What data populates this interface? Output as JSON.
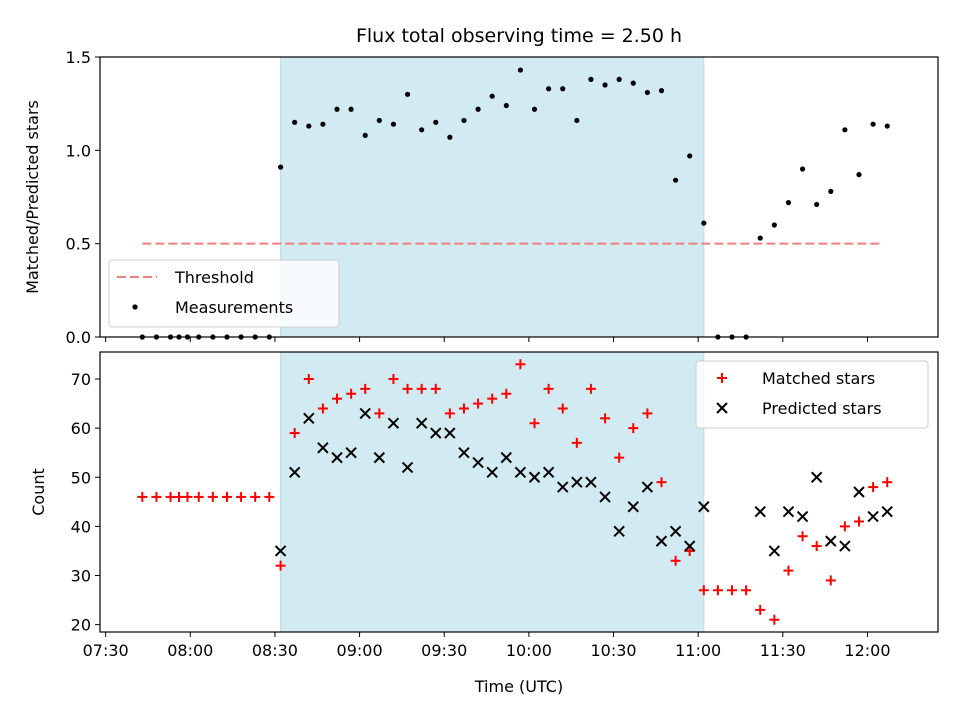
{
  "chart_data": [
    {
      "type": "scatter",
      "title": "Flux total observing time = 2.50 h",
      "xlabel": "",
      "ylabel": "Matched/Predicted stars",
      "ylim": [
        0,
        1.5
      ],
      "yticks": [
        0.0,
        0.5,
        1.0,
        1.5
      ],
      "ytick_labels": [
        "0.0",
        "0.5",
        "1.0",
        "1.5"
      ],
      "x_axis": "time (UTC), HH:MM",
      "xlim": [
        "07:28",
        "12:25"
      ],
      "xticks_minor_only": [
        "07:30",
        "08:00",
        "08:30",
        "09:00",
        "09:30",
        "10:00",
        "10:30",
        "11:00",
        "11:30",
        "12:00"
      ],
      "shaded_span": {
        "start": "08:32",
        "end": "11:02",
        "color": "#d2eaf1"
      },
      "threshold": {
        "value": 0.5,
        "x_start": "07:43",
        "x_end": "12:05",
        "color": "#f08080"
      },
      "legend": {
        "placement": "lower-left",
        "entries": [
          {
            "label": "Threshold",
            "marker": "dashed-line",
            "color": "#f08080"
          },
          {
            "label": "Measurements",
            "marker": "dot",
            "color": "#000000"
          }
        ]
      },
      "series": [
        {
          "name": "Measurements",
          "color": "#000000",
          "points": [
            [
              "07:43",
              0.0
            ],
            [
              "07:48",
              0.0
            ],
            [
              "07:53",
              0.0
            ],
            [
              "07:56",
              0.0
            ],
            [
              "07:59",
              0.0
            ],
            [
              "08:03",
              0.0
            ],
            [
              "08:08",
              0.0
            ],
            [
              "08:13",
              0.0
            ],
            [
              "08:18",
              0.0
            ],
            [
              "08:23",
              0.0
            ],
            [
              "08:28",
              0.0
            ],
            [
              "08:32",
              0.91
            ],
            [
              "08:37",
              1.15
            ],
            [
              "08:42",
              1.13
            ],
            [
              "08:47",
              1.14
            ],
            [
              "08:52",
              1.22
            ],
            [
              "08:57",
              1.22
            ],
            [
              "09:02",
              1.08
            ],
            [
              "09:07",
              1.16
            ],
            [
              "09:12",
              1.14
            ],
            [
              "09:17",
              1.3
            ],
            [
              "09:22",
              1.11
            ],
            [
              "09:27",
              1.15
            ],
            [
              "09:32",
              1.07
            ],
            [
              "09:37",
              1.16
            ],
            [
              "09:42",
              1.22
            ],
            [
              "09:47",
              1.29
            ],
            [
              "09:52",
              1.24
            ],
            [
              "09:57",
              1.43
            ],
            [
              "10:02",
              1.22
            ],
            [
              "10:07",
              1.33
            ],
            [
              "10:12",
              1.33
            ],
            [
              "10:17",
              1.16
            ],
            [
              "10:22",
              1.38
            ],
            [
              "10:27",
              1.35
            ],
            [
              "10:32",
              1.38
            ],
            [
              "10:37",
              1.36
            ],
            [
              "10:42",
              1.31
            ],
            [
              "10:47",
              1.32
            ],
            [
              "10:52",
              0.84
            ],
            [
              "10:57",
              0.97
            ],
            [
              "11:02",
              0.61
            ],
            [
              "11:07",
              0.0
            ],
            [
              "11:12",
              0.0
            ],
            [
              "11:17",
              0.0
            ],
            [
              "11:22",
              0.53
            ],
            [
              "11:27",
              0.6
            ],
            [
              "11:32",
              0.72
            ],
            [
              "11:37",
              0.9
            ],
            [
              "11:42",
              0.71
            ],
            [
              "11:47",
              0.78
            ],
            [
              "11:52",
              1.11
            ],
            [
              "11:57",
              0.87
            ],
            [
              "12:02",
              1.14
            ],
            [
              "12:07",
              1.13
            ]
          ]
        }
      ]
    },
    {
      "type": "scatter",
      "title": "",
      "xlabel": "Time (UTC)",
      "ylabel": "Count",
      "ylim": [
        18.5,
        75.5
      ],
      "yticks": [
        20,
        30,
        40,
        50,
        60,
        70
      ],
      "ytick_labels": [
        "20",
        "30",
        "40",
        "50",
        "60",
        "70"
      ],
      "xlim": [
        "07:28",
        "12:25"
      ],
      "xticks": [
        "07:30",
        "08:00",
        "08:30",
        "09:00",
        "09:30",
        "10:00",
        "10:30",
        "11:00",
        "11:30",
        "12:00"
      ],
      "xtick_labels": [
        "07:30",
        "08:00",
        "08:30",
        "09:00",
        "09:30",
        "10:00",
        "10:30",
        "11:00",
        "11:30",
        "12:00"
      ],
      "shaded_span": {
        "start": "08:32",
        "end": "11:02",
        "color": "#d2eaf1"
      },
      "legend": {
        "placement": "top-right",
        "entries": [
          {
            "label": "Matched stars",
            "marker": "plus",
            "color": "#ff0000"
          },
          {
            "label": "Predicted stars",
            "marker": "x",
            "color": "#000000"
          }
        ]
      },
      "series": [
        {
          "name": "Matched stars",
          "color": "#ff0000",
          "points": [
            [
              "07:43",
              46
            ],
            [
              "07:48",
              46
            ],
            [
              "07:53",
              46
            ],
            [
              "07:56",
              46
            ],
            [
              "07:59",
              46
            ],
            [
              "08:03",
              46
            ],
            [
              "08:08",
              46
            ],
            [
              "08:13",
              46
            ],
            [
              "08:18",
              46
            ],
            [
              "08:23",
              46
            ],
            [
              "08:28",
              46
            ],
            [
              "08:32",
              32
            ],
            [
              "08:37",
              59
            ],
            [
              "08:42",
              70
            ],
            [
              "08:47",
              64
            ],
            [
              "08:52",
              66
            ],
            [
              "08:57",
              67
            ],
            [
              "09:02",
              68
            ],
            [
              "09:07",
              63
            ],
            [
              "09:12",
              70
            ],
            [
              "09:17",
              68
            ],
            [
              "09:22",
              68
            ],
            [
              "09:27",
              68
            ],
            [
              "09:32",
              63
            ],
            [
              "09:37",
              64
            ],
            [
              "09:42",
              65
            ],
            [
              "09:47",
              66
            ],
            [
              "09:52",
              67
            ],
            [
              "09:57",
              73
            ],
            [
              "10:02",
              61
            ],
            [
              "10:07",
              68
            ],
            [
              "10:12",
              64
            ],
            [
              "10:17",
              57
            ],
            [
              "10:22",
              68
            ],
            [
              "10:27",
              62
            ],
            [
              "10:32",
              54
            ],
            [
              "10:37",
              60
            ],
            [
              "10:42",
              63
            ],
            [
              "10:47",
              49
            ],
            [
              "10:52",
              33
            ],
            [
              "10:57",
              35
            ],
            [
              "11:02",
              27
            ],
            [
              "11:07",
              27
            ],
            [
              "11:12",
              27
            ],
            [
              "11:17",
              27
            ],
            [
              "11:22",
              23
            ],
            [
              "11:27",
              21
            ],
            [
              "11:32",
              31
            ],
            [
              "11:37",
              38
            ],
            [
              "11:42",
              36
            ],
            [
              "11:47",
              29
            ],
            [
              "11:52",
              40
            ],
            [
              "11:57",
              41
            ],
            [
              "12:02",
              48
            ],
            [
              "12:07",
              49
            ]
          ]
        },
        {
          "name": "Predicted stars",
          "color": "#000000",
          "points": [
            [
              "08:32",
              35
            ],
            [
              "08:37",
              51
            ],
            [
              "08:42",
              62
            ],
            [
              "08:47",
              56
            ],
            [
              "08:52",
              54
            ],
            [
              "08:57",
              55
            ],
            [
              "09:02",
              63
            ],
            [
              "09:07",
              54
            ],
            [
              "09:12",
              61
            ],
            [
              "09:17",
              52
            ],
            [
              "09:22",
              61
            ],
            [
              "09:27",
              59
            ],
            [
              "09:32",
              59
            ],
            [
              "09:37",
              55
            ],
            [
              "09:42",
              53
            ],
            [
              "09:47",
              51
            ],
            [
              "09:52",
              54
            ],
            [
              "09:57",
              51
            ],
            [
              "10:02",
              50
            ],
            [
              "10:07",
              51
            ],
            [
              "10:12",
              48
            ],
            [
              "10:17",
              49
            ],
            [
              "10:22",
              49
            ],
            [
              "10:27",
              46
            ],
            [
              "10:32",
              39
            ],
            [
              "10:37",
              44
            ],
            [
              "10:42",
              48
            ],
            [
              "10:47",
              37
            ],
            [
              "10:52",
              39
            ],
            [
              "10:57",
              36
            ],
            [
              "11:02",
              44
            ],
            [
              "11:22",
              43
            ],
            [
              "11:27",
              35
            ],
            [
              "11:32",
              43
            ],
            [
              "11:37",
              42
            ],
            [
              "11:42",
              50
            ],
            [
              "11:47",
              37
            ],
            [
              "11:52",
              36
            ],
            [
              "11:57",
              47
            ],
            [
              "12:02",
              42
            ],
            [
              "12:07",
              43
            ]
          ]
        }
      ]
    }
  ]
}
